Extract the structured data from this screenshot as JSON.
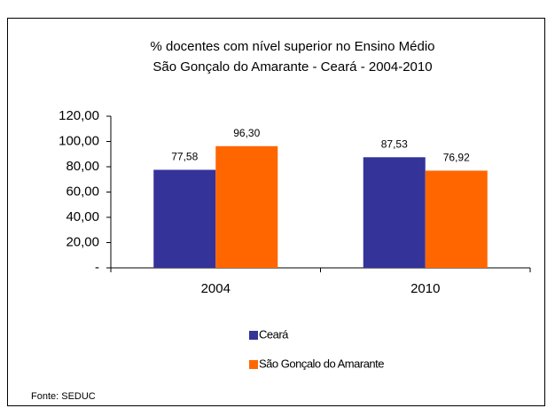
{
  "chart_data": {
    "type": "bar",
    "title": "% docentes com nível  superior no Ensino Médio",
    "subtitle": "São Gonçalo do Amarante   -  Ceará - 2004-2010",
    "categories": [
      "2004",
      "2010"
    ],
    "series": [
      {
        "name": "Ceará",
        "color": "#333399",
        "values": [
          77.58,
          87.53
        ],
        "value_labels": [
          "77,58",
          "87,53"
        ]
      },
      {
        "name": "São Gonçalo do Amarante",
        "color": "#ff6600",
        "values": [
          96.3,
          76.92
        ],
        "value_labels": [
          "96,30",
          "76,92"
        ]
      }
    ],
    "ylim": [
      0,
      120
    ],
    "yticks": [
      {
        "value": 0,
        "label": "-"
      },
      {
        "value": 20,
        "label": "20,00"
      },
      {
        "value": 40,
        "label": "40,00"
      },
      {
        "value": 60,
        "label": "60,00"
      },
      {
        "value": 80,
        "label": "80,00"
      },
      {
        "value": 100,
        "label": "100,00"
      },
      {
        "value": 120,
        "label": "120,00"
      }
    ],
    "grid": false,
    "legend": "bottom",
    "source": "Fonte: SEDUC"
  }
}
